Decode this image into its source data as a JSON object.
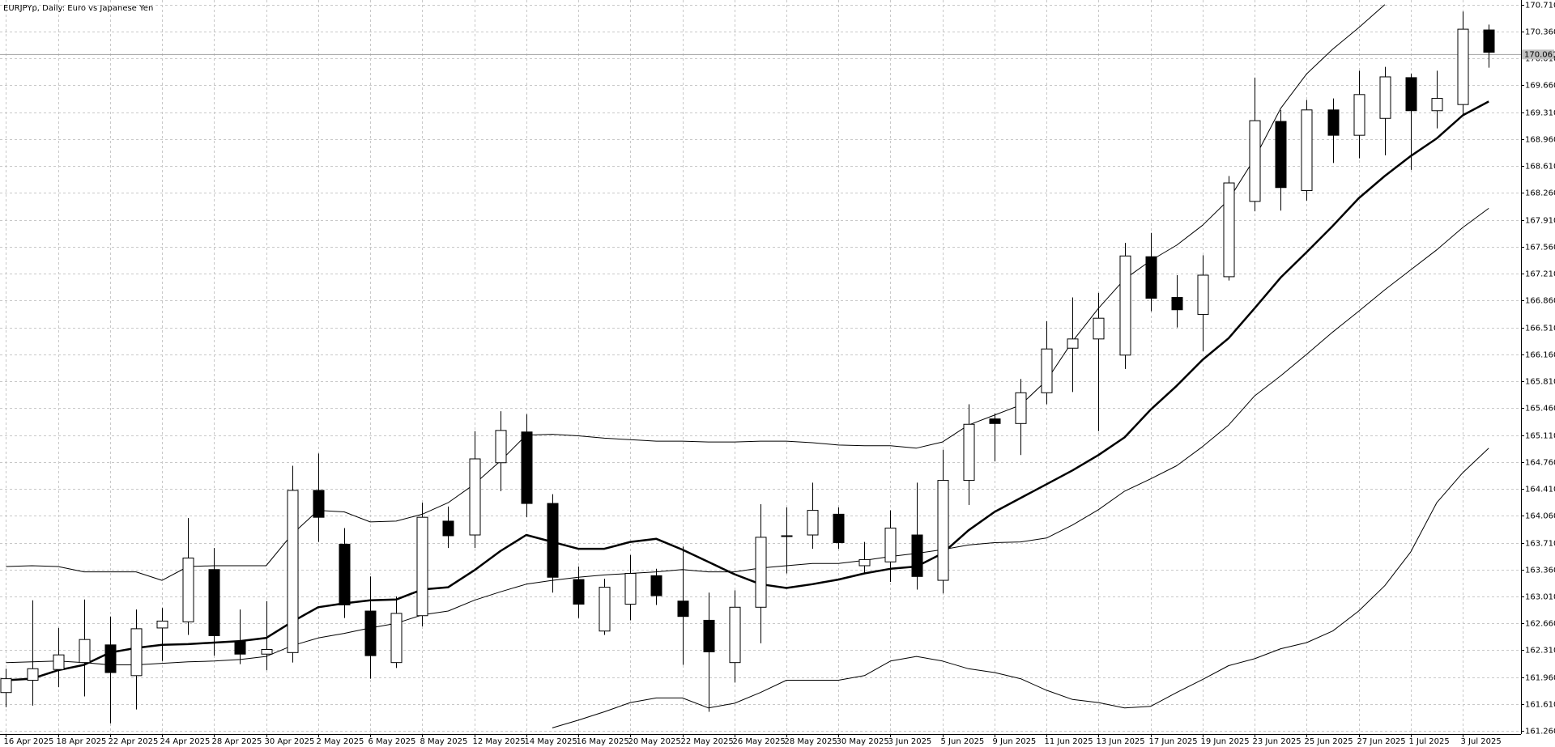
{
  "chart_data": {
    "type": "candlestick",
    "title": "EURJPYp, Daily:  Euro vs Japanese Yen",
    "categories": [
      "16 Apr 2025",
      null,
      "18 Apr 2025",
      null,
      "22 Apr 2025",
      null,
      "24 Apr 2025",
      null,
      "28 Apr 2025",
      null,
      "30 Apr 2025",
      null,
      "2 May 2025",
      null,
      "6 May 2025",
      null,
      "8 May 2025",
      null,
      "12 May 2025",
      null,
      "14 May 2025",
      null,
      "16 May 2025",
      null,
      "20 May 2025",
      null,
      "22 May 2025",
      null,
      "26 May 2025",
      null,
      "28 May 2025",
      null,
      "30 May 2025",
      null,
      "3 Jun 2025",
      null,
      "5 Jun 2025",
      null,
      "9 Jun 2025",
      null,
      "11 Jun 2025",
      null,
      "13 Jun 2025",
      null,
      "17 Jun 2025",
      null,
      "19 Jun 2025",
      null,
      "23 Jun 2025",
      null,
      "25 Jun 2025",
      null,
      "27 Jun 2025",
      null,
      "1 Jul 2025",
      null,
      "3 Jul 2025",
      null
    ],
    "open": [
      161.76,
      161.92,
      162.06,
      162.15,
      162.38,
      161.98,
      162.6,
      162.68,
      163.36,
      162.43,
      162.26,
      162.28,
      164.39,
      163.69,
      162.82,
      162.15,
      162.76,
      163.99,
      163.81,
      164.75,
      165.15,
      164.22,
      163.23,
      162.56,
      162.91,
      163.28,
      162.95,
      162.7,
      162.15,
      162.87,
      163.79,
      163.81,
      164.08,
      163.41,
      163.46,
      163.81,
      163.22,
      164.52,
      165.32,
      165.26,
      165.66,
      166.24,
      166.36,
      166.15,
      167.43,
      166.9,
      166.68,
      167.17,
      168.15,
      169.19,
      168.29,
      169.34,
      169.01,
      169.23,
      169.76,
      169.33,
      169.41,
      170.38
    ],
    "high": [
      162.07,
      162.96,
      162.6,
      162.97,
      162.75,
      162.84,
      162.86,
      164.03,
      163.64,
      162.84,
      162.95,
      164.71,
      164.87,
      163.9,
      163.27,
      163.01,
      164.23,
      164.18,
      165.16,
      165.42,
      165.38,
      164.34,
      163.4,
      163.24,
      163.55,
      163.37,
      163.66,
      163.06,
      163.09,
      164.21,
      164.17,
      164.49,
      164.17,
      163.72,
      164.13,
      164.49,
      164.92,
      165.51,
      165.39,
      165.84,
      166.59,
      166.9,
      166.96,
      167.61,
      167.74,
      167.19,
      167.45,
      168.48,
      169.76,
      169.34,
      169.47,
      169.49,
      169.85,
      169.9,
      169.81,
      169.85,
      170.62,
      170.45
    ],
    "low": [
      161.57,
      161.59,
      161.83,
      161.71,
      161.36,
      161.54,
      162.17,
      162.51,
      162.24,
      162.13,
      162.05,
      162.15,
      163.72,
      162.73,
      161.94,
      162.08,
      162.62,
      163.64,
      163.64,
      164.38,
      164.04,
      163.06,
      162.73,
      162.51,
      162.7,
      162.9,
      162.12,
      161.51,
      161.89,
      162.4,
      163.31,
      163.63,
      163.63,
      163.31,
      163.2,
      163.1,
      163.05,
      164.2,
      164.77,
      164.85,
      165.51,
      165.67,
      165.16,
      165.97,
      166.72,
      166.51,
      166.2,
      167.12,
      168.02,
      168.03,
      168.16,
      168.65,
      168.71,
      168.75,
      168.56,
      169.1,
      169.28,
      169.89
    ],
    "close": [
      161.94,
      162.07,
      162.25,
      162.45,
      162.02,
      162.59,
      162.69,
      163.51,
      162.5,
      162.26,
      162.32,
      164.39,
      164.04,
      162.9,
      162.24,
      162.79,
      164.04,
      163.8,
      164.8,
      165.17,
      164.22,
      163.26,
      162.91,
      163.13,
      163.31,
      163.02,
      162.75,
      162.29,
      162.87,
      163.78,
      163.8,
      164.13,
      163.71,
      163.49,
      163.9,
      163.27,
      164.52,
      165.25,
      165.26,
      165.66,
      166.23,
      166.36,
      166.63,
      167.44,
      166.89,
      166.74,
      167.19,
      168.39,
      169.2,
      168.33,
      169.34,
      169.01,
      169.54,
      169.77,
      169.33,
      169.49,
      170.39,
      170.09
    ],
    "overlays": [
      {
        "color": "#000000",
        "width": 2.5,
        "values": [
          161.92,
          161.94,
          162.05,
          162.12,
          162.28,
          162.34,
          162.38,
          162.39,
          162.41,
          162.43,
          162.47,
          162.68,
          162.87,
          162.92,
          162.96,
          162.97,
          163.1,
          163.13,
          163.35,
          163.6,
          163.81,
          163.72,
          163.63,
          163.63,
          163.72,
          163.76,
          163.62,
          163.46,
          163.3,
          163.17,
          163.12,
          163.17,
          163.23,
          163.31,
          163.37,
          163.4,
          163.57,
          163.87,
          164.11,
          164.29,
          164.47,
          164.65,
          164.85,
          165.08,
          165.44,
          165.75,
          166.09,
          166.37,
          166.76,
          167.16,
          167.49,
          167.83,
          168.19,
          168.48,
          168.74,
          168.97,
          169.27,
          169.45
        ]
      },
      {
        "color": "#000000",
        "width": 1,
        "values": [
          163.4,
          163.41,
          163.4,
          163.33,
          163.33,
          163.33,
          163.22,
          163.4,
          163.41,
          163.41,
          163.41,
          163.82,
          164.13,
          164.11,
          163.98,
          163.99,
          164.08,
          164.23,
          164.47,
          164.77,
          165.11,
          165.12,
          165.1,
          165.07,
          165.05,
          165.03,
          165.03,
          165.02,
          165.02,
          165.03,
          165.03,
          165.01,
          164.98,
          164.97,
          164.97,
          164.94,
          165.02,
          165.24,
          165.37,
          165.5,
          165.82,
          166.33,
          166.76,
          167.14,
          167.38,
          167.58,
          167.84,
          168.17,
          168.71,
          169.36,
          169.81,
          170.13,
          170.41,
          170.71,
          null,
          null,
          null,
          null
        ]
      },
      {
        "color": "#000000",
        "width": 1,
        "values": [
          162.15,
          162.16,
          162.17,
          162.15,
          162.12,
          162.12,
          162.14,
          162.16,
          162.17,
          162.19,
          162.23,
          162.37,
          162.47,
          162.53,
          162.6,
          162.66,
          162.77,
          162.82,
          162.96,
          163.07,
          163.17,
          163.22,
          163.26,
          163.29,
          163.31,
          163.33,
          163.36,
          163.33,
          163.33,
          163.38,
          163.41,
          163.44,
          163.44,
          163.48,
          163.53,
          163.57,
          163.62,
          163.68,
          163.71,
          163.72,
          163.77,
          163.94,
          164.14,
          164.38,
          164.54,
          164.71,
          164.96,
          165.24,
          165.62,
          165.88,
          166.16,
          166.45,
          166.72,
          167.0,
          167.26,
          167.52,
          167.81,
          168.06
        ]
      },
      {
        "color": "#000000",
        "width": 1,
        "values": [
          null,
          null,
          null,
          null,
          null,
          null,
          null,
          null,
          null,
          null,
          null,
          null,
          null,
          null,
          null,
          null,
          null,
          null,
          null,
          null,
          null,
          161.3,
          161.4,
          161.51,
          161.63,
          161.69,
          161.69,
          161.56,
          161.62,
          161.76,
          161.92,
          161.92,
          161.92,
          161.98,
          162.17,
          162.23,
          162.17,
          162.07,
          162.02,
          161.94,
          161.79,
          161.67,
          161.63,
          161.56,
          161.58,
          161.76,
          161.93,
          162.11,
          162.2,
          162.33,
          162.41,
          162.56,
          162.82,
          163.15,
          163.59,
          164.23,
          164.62,
          164.94
        ]
      }
    ],
    "up_color": "#ffffff",
    "down_color": "#000000",
    "last_price": 170.061,
    "ylim": [
      161.22,
      170.77
    ],
    "yticks": [
      {
        "value": 161.26,
        "label": "161.260"
      },
      {
        "value": 161.61,
        "label": "161.610"
      },
      {
        "value": 161.96,
        "label": "161.960"
      },
      {
        "value": 162.31,
        "label": "162.310"
      },
      {
        "value": 162.66,
        "label": "162.660"
      },
      {
        "value": 163.01,
        "label": "163.010"
      },
      {
        "value": 163.36,
        "label": "163.360"
      },
      {
        "value": 163.71,
        "label": "163.710"
      },
      {
        "value": 164.06,
        "label": "164.060"
      },
      {
        "value": 164.41,
        "label": "164.410"
      },
      {
        "value": 164.76,
        "label": "164.760"
      },
      {
        "value": 165.11,
        "label": "165.110"
      },
      {
        "value": 165.46,
        "label": "165.460"
      },
      {
        "value": 165.81,
        "label": "165.810"
      },
      {
        "value": 166.16,
        "label": "166.160"
      },
      {
        "value": 166.51,
        "label": "166.510"
      },
      {
        "value": 166.86,
        "label": "166.860"
      },
      {
        "value": 167.21,
        "label": "167.210"
      },
      {
        "value": 167.56,
        "label": "167.560"
      },
      {
        "value": 167.91,
        "label": "167.910"
      },
      {
        "value": 168.26,
        "label": "168.260"
      },
      {
        "value": 168.61,
        "label": "168.610"
      },
      {
        "value": 168.96,
        "label": "168.960"
      },
      {
        "value": 169.31,
        "label": "169.310"
      },
      {
        "value": 169.66,
        "label": "169.660"
      },
      {
        "value": 170.01,
        "label": "170.010"
      },
      {
        "value": 170.36,
        "label": "170.360"
      },
      {
        "value": 170.71,
        "label": "170.710"
      }
    ],
    "grid": true
  }
}
